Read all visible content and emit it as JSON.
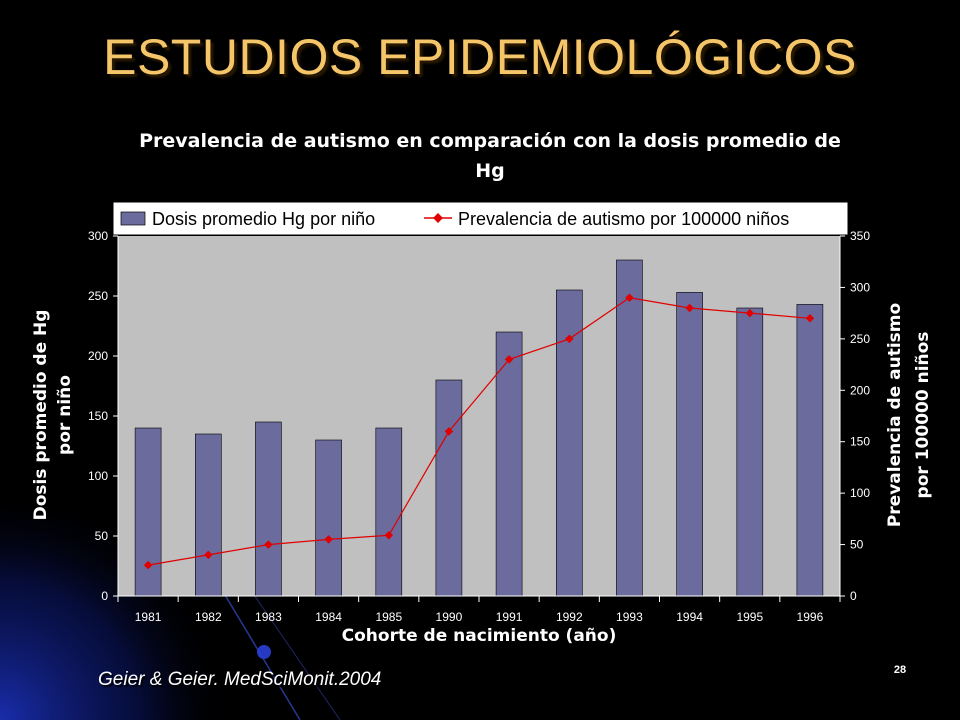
{
  "slide": {
    "title": "ESTUDIOS EPIDEMIOLÓGICOS",
    "source": "Geier & Geier. MedSciMonit.2004",
    "page_number": "28",
    "title_color": "#f5c56a",
    "background_color": "#000000"
  },
  "chart_data": {
    "type": "bar+line",
    "title_line1": "Prevalencia de autismo en comparación con la dosis promedio de",
    "title_line2": "Hg",
    "categories": [
      "1981",
      "1982",
      "1983",
      "1984",
      "1985",
      "1990",
      "1991",
      "1992",
      "1993",
      "1994",
      "1995",
      "1996"
    ],
    "series": [
      {
        "name": "Dosis promedio Hg por niño",
        "type": "bar",
        "axis": "left",
        "color": "#6b6b9e",
        "values": [
          140,
          135,
          145,
          130,
          140,
          180,
          220,
          255,
          280,
          253,
          240,
          243
        ]
      },
      {
        "name": "Prevalencia de autismo por 100000 niños",
        "type": "line",
        "axis": "right",
        "color": "#e00000",
        "values": [
          30,
          40,
          50,
          55,
          59,
          160,
          230,
          250,
          290,
          280,
          275,
          270
        ]
      }
    ],
    "xlabel": "Cohorte de nacimiento (año)",
    "ylabel_left_line1": "Dosis promedio de Hg",
    "ylabel_left_line2": "por niño",
    "ylabel_right_line1": "Prevalencia de autismo",
    "ylabel_right_line2": "por 100000 niños",
    "ylim_left": [
      0,
      300
    ],
    "yticks_left": [
      "0",
      "50",
      "100",
      "150",
      "200",
      "250",
      "300"
    ],
    "ylim_right": [
      0,
      350
    ],
    "yticks_right": [
      "0",
      "50",
      "100",
      "150",
      "200",
      "250",
      "300",
      "350"
    ],
    "plot_background": "#c0c0c0",
    "grid": false,
    "legend_position": "top"
  }
}
